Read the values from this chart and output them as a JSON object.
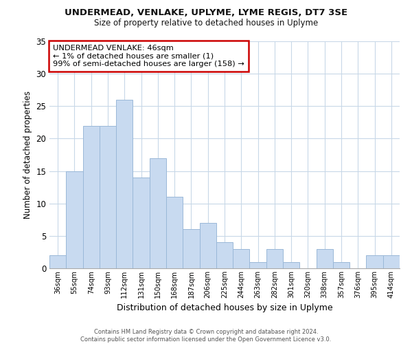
{
  "title": "UNDERMEAD, VENLAKE, UPLYME, LYME REGIS, DT7 3SE",
  "subtitle": "Size of property relative to detached houses in Uplyme",
  "xlabel": "Distribution of detached houses by size in Uplyme",
  "ylabel": "Number of detached properties",
  "bar_color": "#c8daf0",
  "bar_edge_color": "#9ab8d8",
  "categories": [
    "36sqm",
    "55sqm",
    "74sqm",
    "93sqm",
    "112sqm",
    "131sqm",
    "150sqm",
    "168sqm",
    "187sqm",
    "206sqm",
    "225sqm",
    "244sqm",
    "263sqm",
    "282sqm",
    "301sqm",
    "320sqm",
    "338sqm",
    "357sqm",
    "376sqm",
    "395sqm",
    "414sqm"
  ],
  "values": [
    2,
    15,
    22,
    22,
    26,
    14,
    17,
    11,
    6,
    7,
    4,
    3,
    1,
    3,
    1,
    0,
    3,
    1,
    0,
    2,
    2
  ],
  "ylim": [
    0,
    35
  ],
  "yticks": [
    0,
    5,
    10,
    15,
    20,
    25,
    30,
    35
  ],
  "annotation_text": "UNDERMEAD VENLAKE: 46sqm\n← 1% of detached houses are smaller (1)\n99% of semi-detached houses are larger (158) →",
  "annotation_box_color": "#ffffff",
  "annotation_box_edge_color": "#cc0000",
  "footer_line1": "Contains HM Land Registry data © Crown copyright and database right 2024.",
  "footer_line2": "Contains public sector information licensed under the Open Government Licence v3.0.",
  "grid_color": "#c8d8e8",
  "background_color": "#ffffff"
}
